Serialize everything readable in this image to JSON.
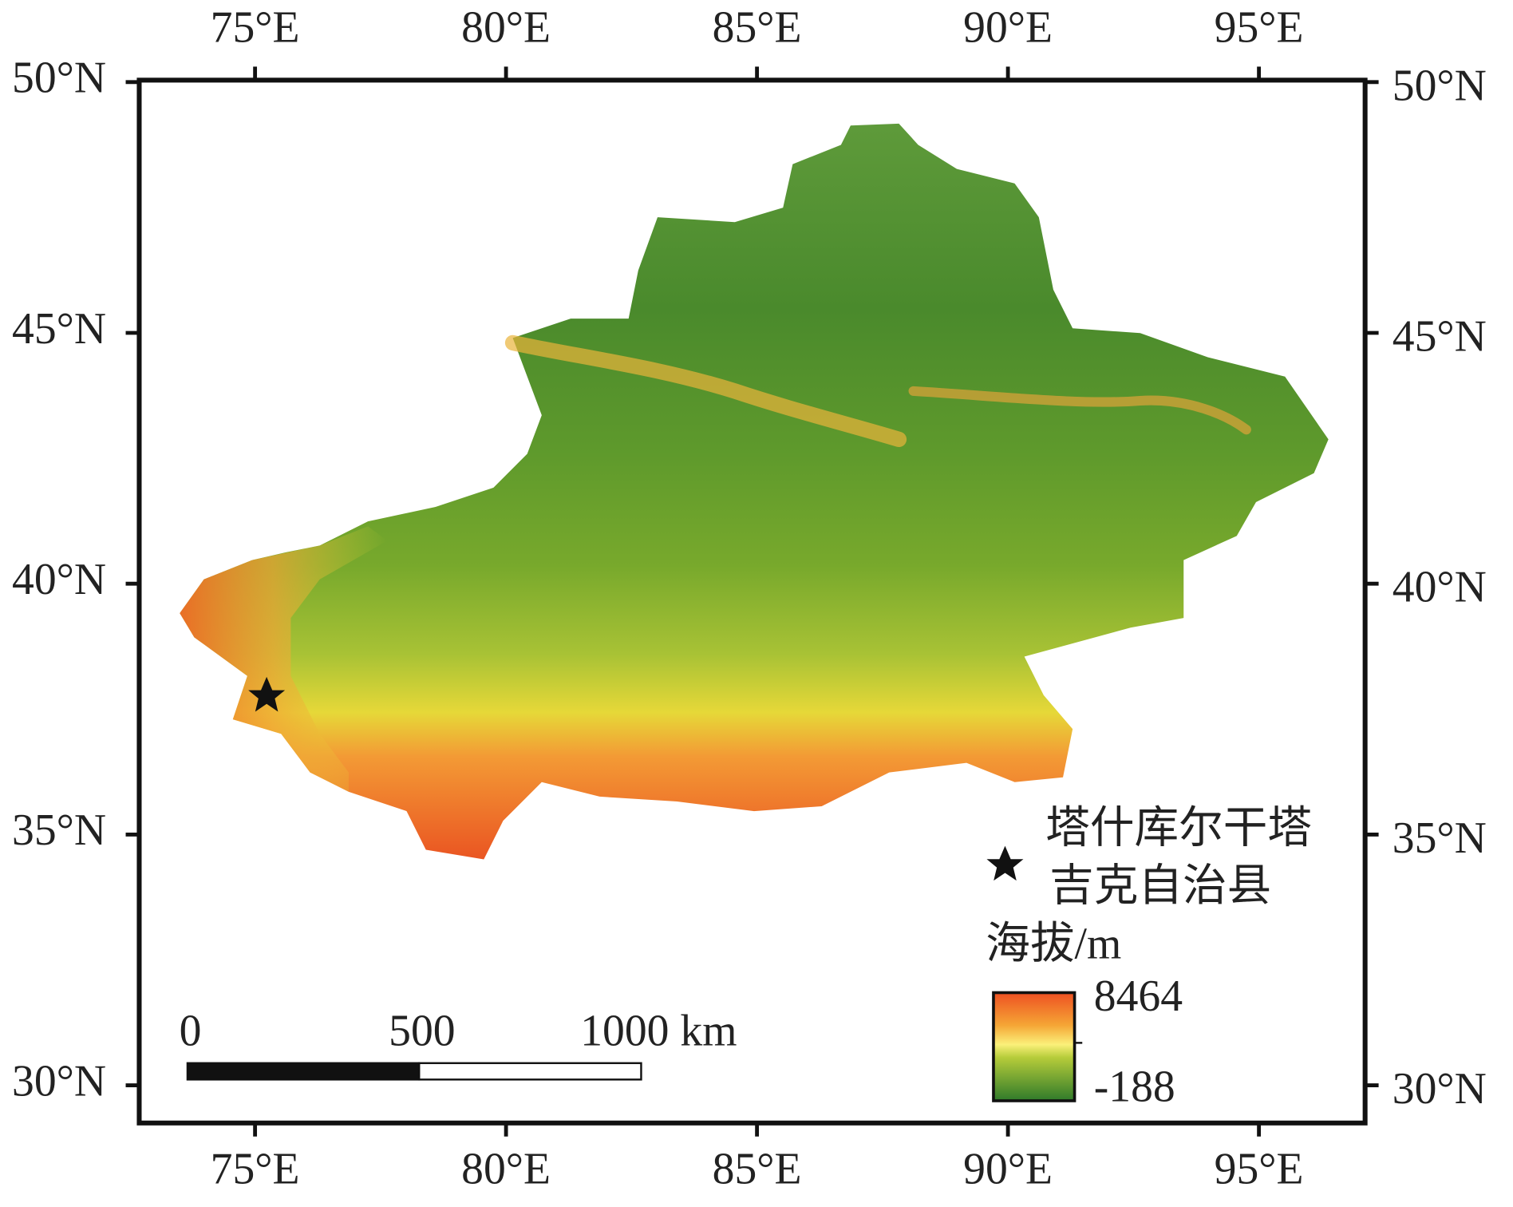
{
  "map": {
    "x_labels": [
      "75°E",
      "80°E",
      "85°E",
      "90°E",
      "95°E"
    ],
    "y_labels": [
      "50°N",
      "45°N",
      "40°N",
      "35°N",
      "30°N"
    ],
    "legend": {
      "marker_label_lines": [
        "塔什库尔干塔",
        "吉克自治县"
      ],
      "elevation_title": "海拔/m",
      "max": 8464,
      "min": -188
    },
    "scale_bar": {
      "labels": [
        0,
        500,
        "1000 km"
      ]
    }
  }
}
